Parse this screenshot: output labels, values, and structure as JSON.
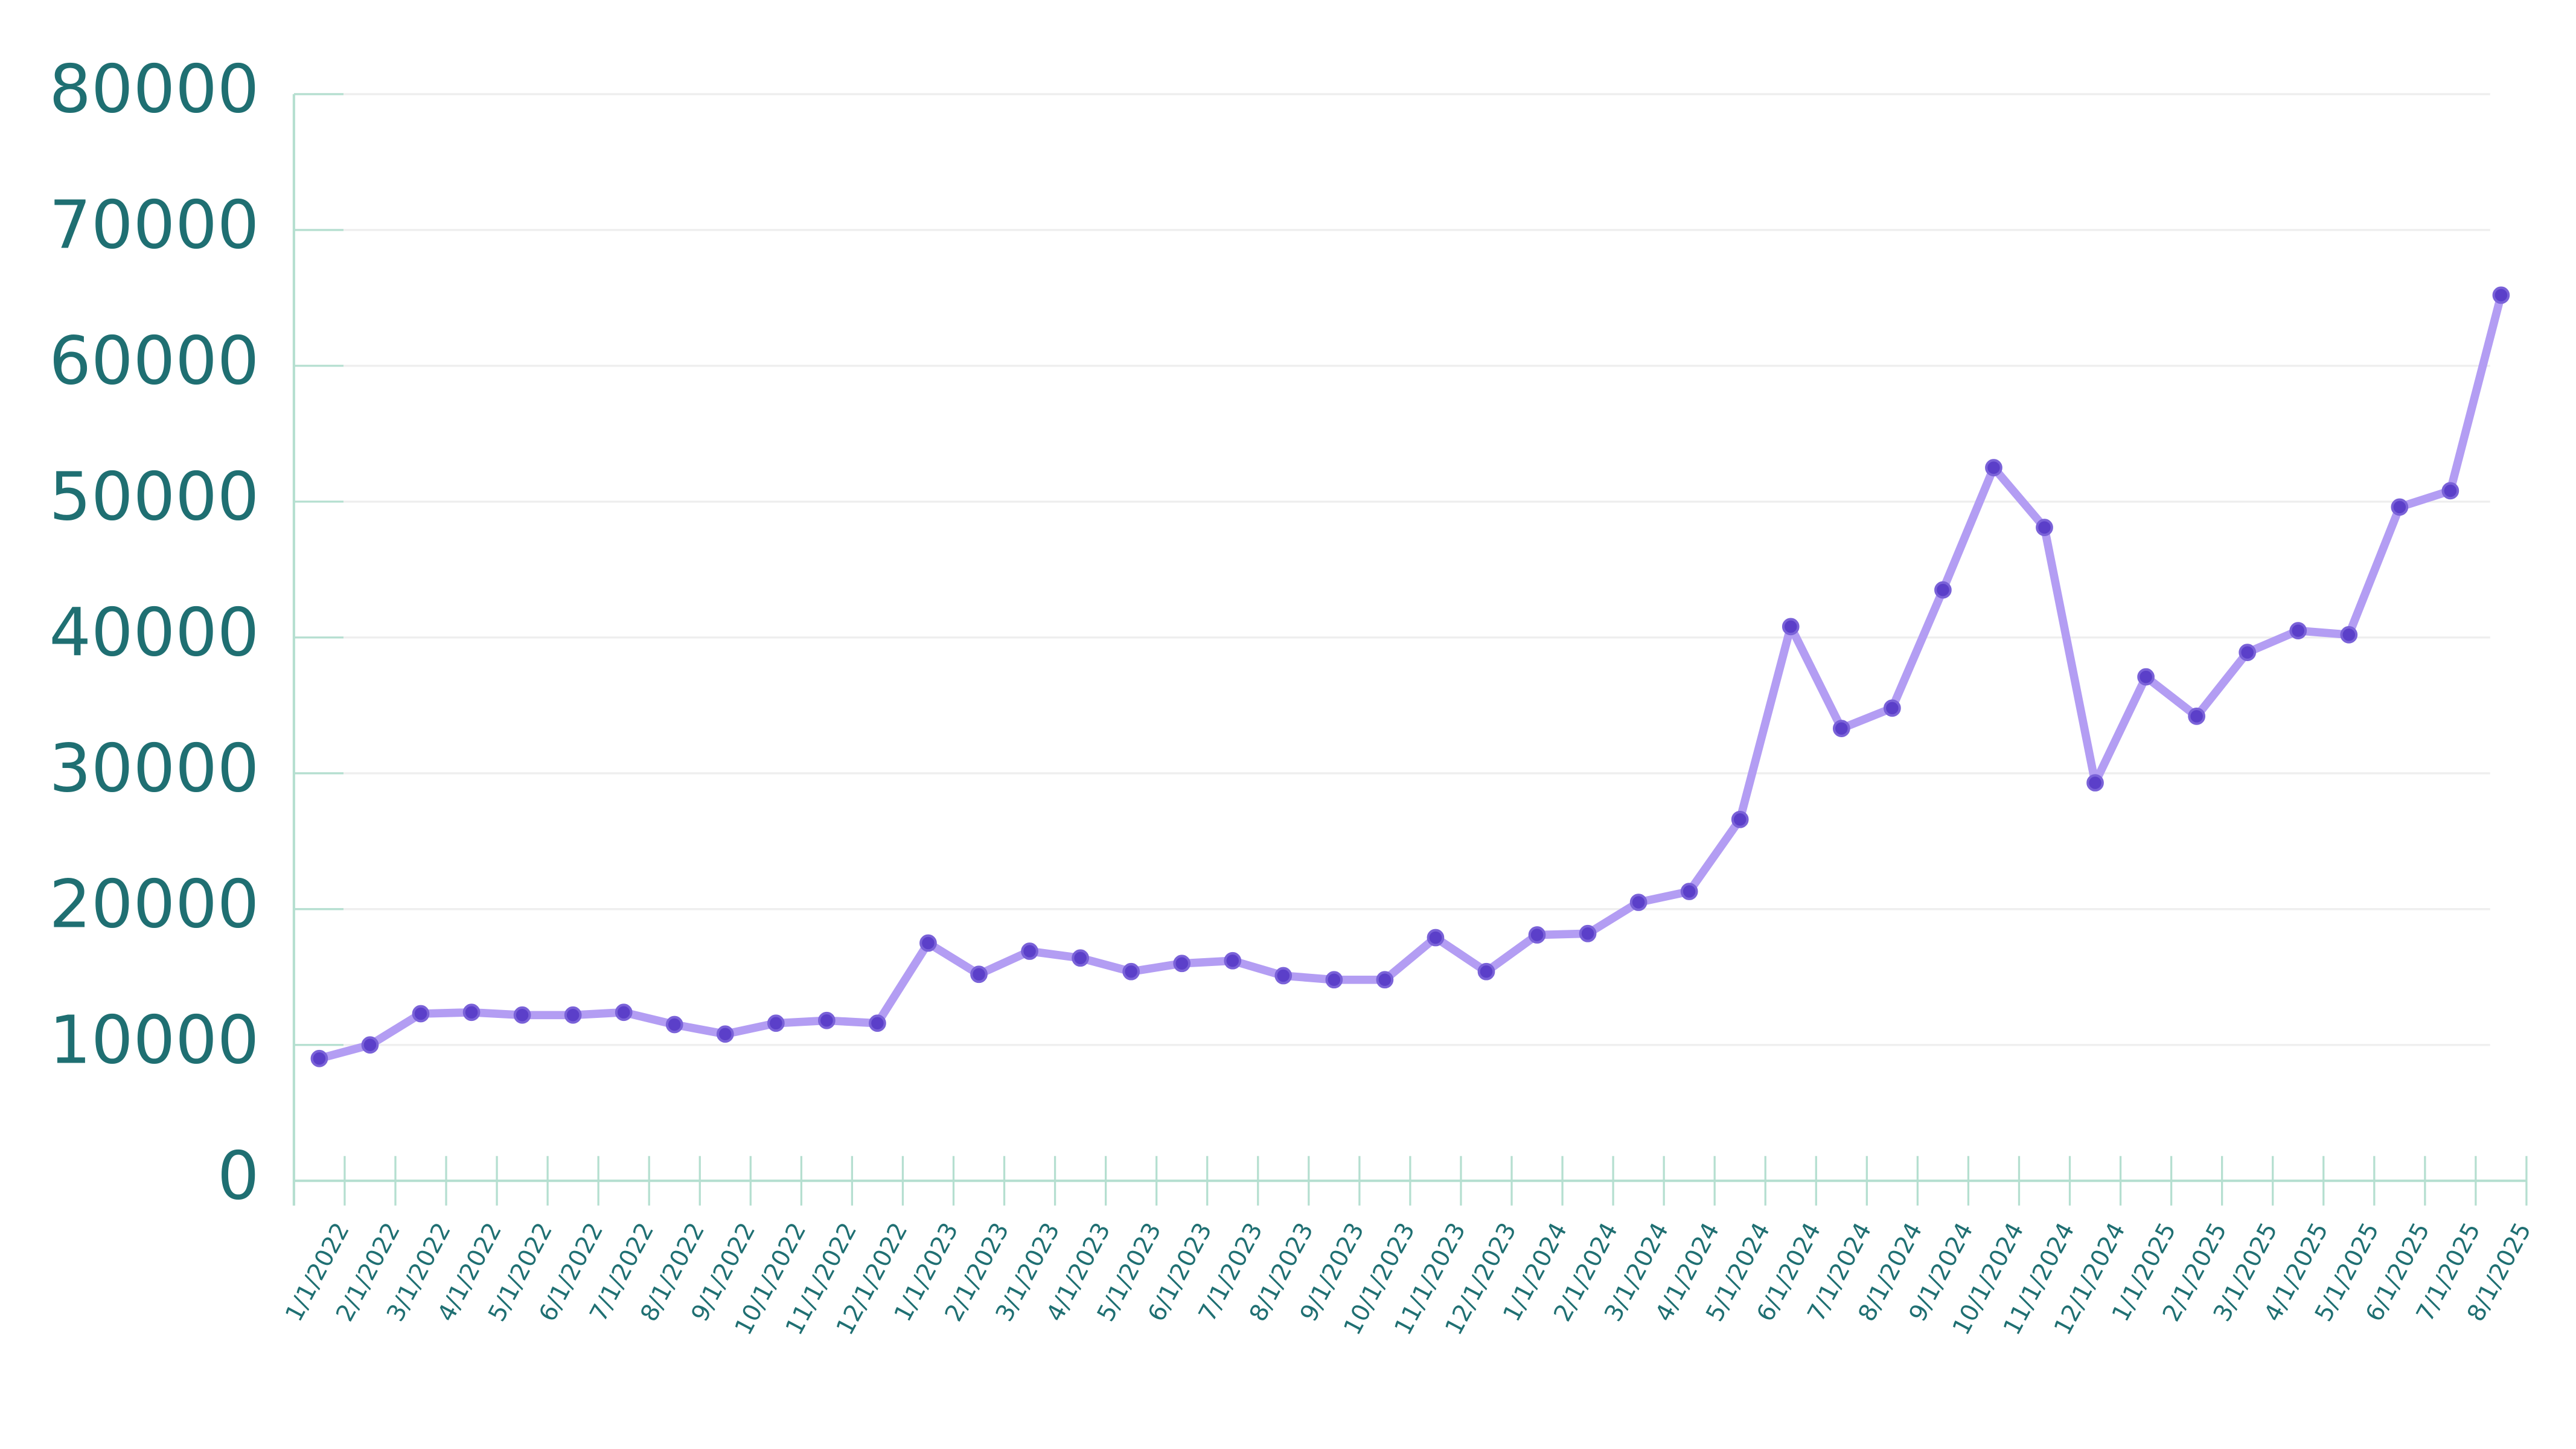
{
  "chart_data": {
    "type": "line",
    "categories": [
      "1/1/2022",
      "2/1/2022",
      "3/1/2022",
      "4/1/2022",
      "5/1/2022",
      "6/1/2022",
      "7/1/2022",
      "8/1/2022",
      "9/1/2022",
      "10/1/2022",
      "11/1/2022",
      "12/1/2022",
      "1/1/2023",
      "2/1/2023",
      "3/1/2023",
      "4/1/2023",
      "5/1/2023",
      "6/1/2023",
      "7/1/2023",
      "8/1/2023",
      "9/1/2023",
      "10/1/2023",
      "11/1/2023",
      "12/1/2023",
      "1/1/2024",
      "2/1/2024",
      "3/1/2024",
      "4/1/2024",
      "5/1/2024",
      "6/1/2024",
      "7/1/2024",
      "8/1/2024",
      "9/1/2024",
      "10/1/2024",
      "11/1/2024",
      "12/1/2024",
      "1/1/2025",
      "2/1/2025",
      "3/1/2025",
      "4/1/2025",
      "5/1/2025",
      "6/1/2025",
      "7/1/2025",
      "8/1/2025"
    ],
    "values": [
      9000,
      10000,
      12300,
      12400,
      12200,
      12200,
      12400,
      11500,
      10800,
      11600,
      11800,
      11600,
      17500,
      15200,
      16900,
      16400,
      15400,
      16000,
      16200,
      15100,
      14800,
      14800,
      17900,
      15400,
      18100,
      18200,
      20500,
      21300,
      26600,
      40800,
      33300,
      34800,
      43500,
      52500,
      48100,
      29300,
      37100,
      34200,
      38900,
      40500,
      40200,
      49600,
      50800,
      65200
    ],
    "color": "#b39df3",
    "marker_color": "#5b3fc9",
    "ylim": [
      0,
      80000
    ],
    "yticks": [
      0,
      10000,
      20000,
      30000,
      40000,
      50000,
      60000,
      70000,
      80000
    ],
    "grid": true
  }
}
